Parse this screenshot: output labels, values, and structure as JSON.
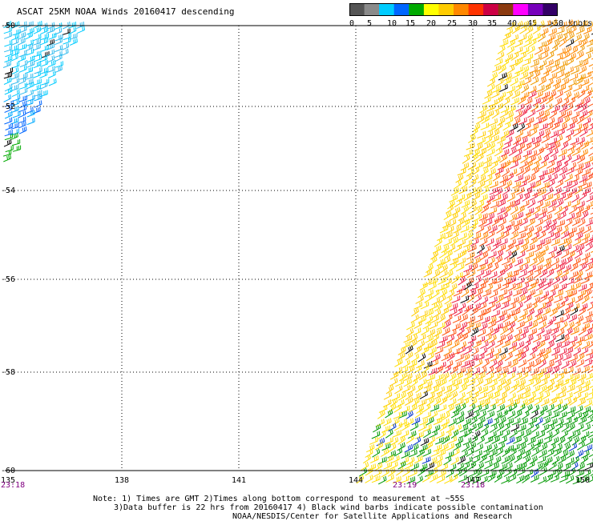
{
  "title": "ASCAT 25KM NOAA Winds 20160417 descending",
  "legend": {
    "colors": [
      "#555555",
      "#8a8a8a",
      "#00ccff",
      "#0066ff",
      "#00aa00",
      "#ffff00",
      "#ffcc00",
      "#ff8800",
      "#ff3300",
      "#cc0044",
      "#8b3a0f",
      "#ff00ff",
      "#7700bb",
      "#330066"
    ],
    "labels": [
      "0",
      "5",
      "10",
      "15",
      "20",
      "25",
      "30",
      "35",
      "40",
      "45",
      ">50 knots"
    ]
  },
  "axes": {
    "lon_labels": [
      "135",
      "138",
      "141",
      "144",
      "147",
      "150"
    ],
    "lat_labels": [
      "-50",
      "-52",
      "-54",
      "-56",
      "-58",
      "-60"
    ]
  },
  "times": [
    {
      "label": "23:18"
    },
    {
      "label": "23:19"
    },
    {
      "label": "23:18"
    }
  ],
  "notes": {
    "line1": "Note: 1) Times are GMT 2)Times along bottom correspond to measurement at ~55S",
    "line2": "3)Data buffer is 22 hrs from 20160417 4) Black wind barbs indicate possible contamination",
    "line3": "NOAA/NESDIS/Center for Satellite Applications and Research"
  }
}
